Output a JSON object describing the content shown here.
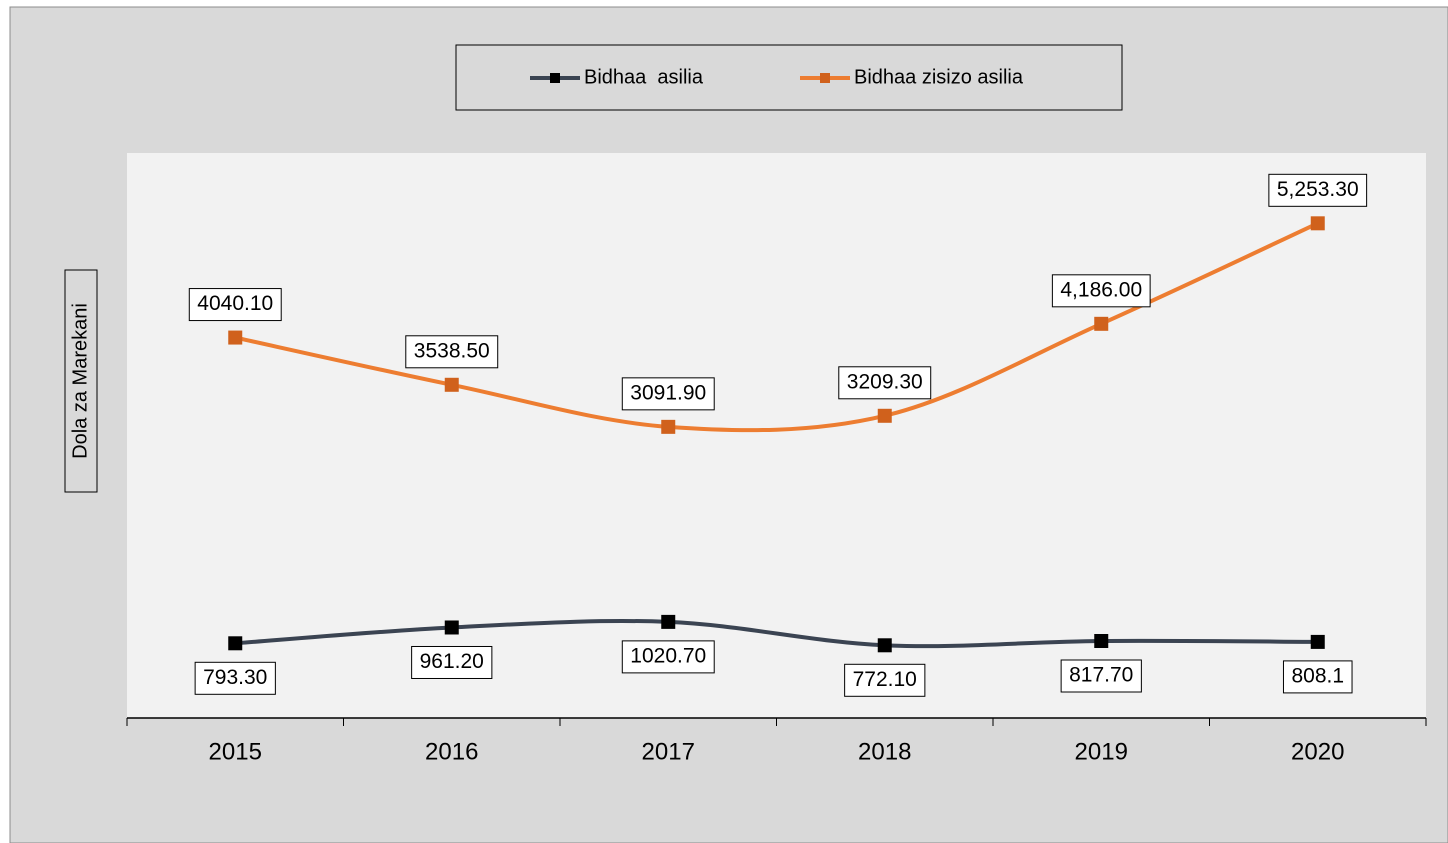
{
  "chart_data": {
    "type": "line",
    "y_label": "Dola za Marekani",
    "categories": [
      "2015",
      "2016",
      "2017",
      "2018",
      "2019",
      "2020"
    ],
    "series": [
      {
        "name": "Bidhaa  asilia",
        "color": "#3b4452",
        "marker_color": "#000000",
        "values": [
          793.3,
          961.2,
          1020.7,
          772.1,
          817.7,
          808.1
        ],
        "value_labels": [
          "793.30",
          "961.20",
          "1020.70",
          "772.10",
          "817.70",
          "808.1"
        ]
      },
      {
        "name": "Bidhaa zisizo asilia",
        "color": "#ed7d31",
        "marker_color": "#d0611c",
        "values": [
          4040.1,
          3538.5,
          3091.9,
          3209.3,
          4186.0,
          5253.3
        ],
        "value_labels": [
          "4040.10",
          "3538.50",
          "3091.90",
          "3209.30",
          "4,186.00",
          "5,253.30"
        ]
      }
    ],
    "ylim": [
      0,
      6000
    ],
    "smooth": true,
    "legend": "top"
  }
}
